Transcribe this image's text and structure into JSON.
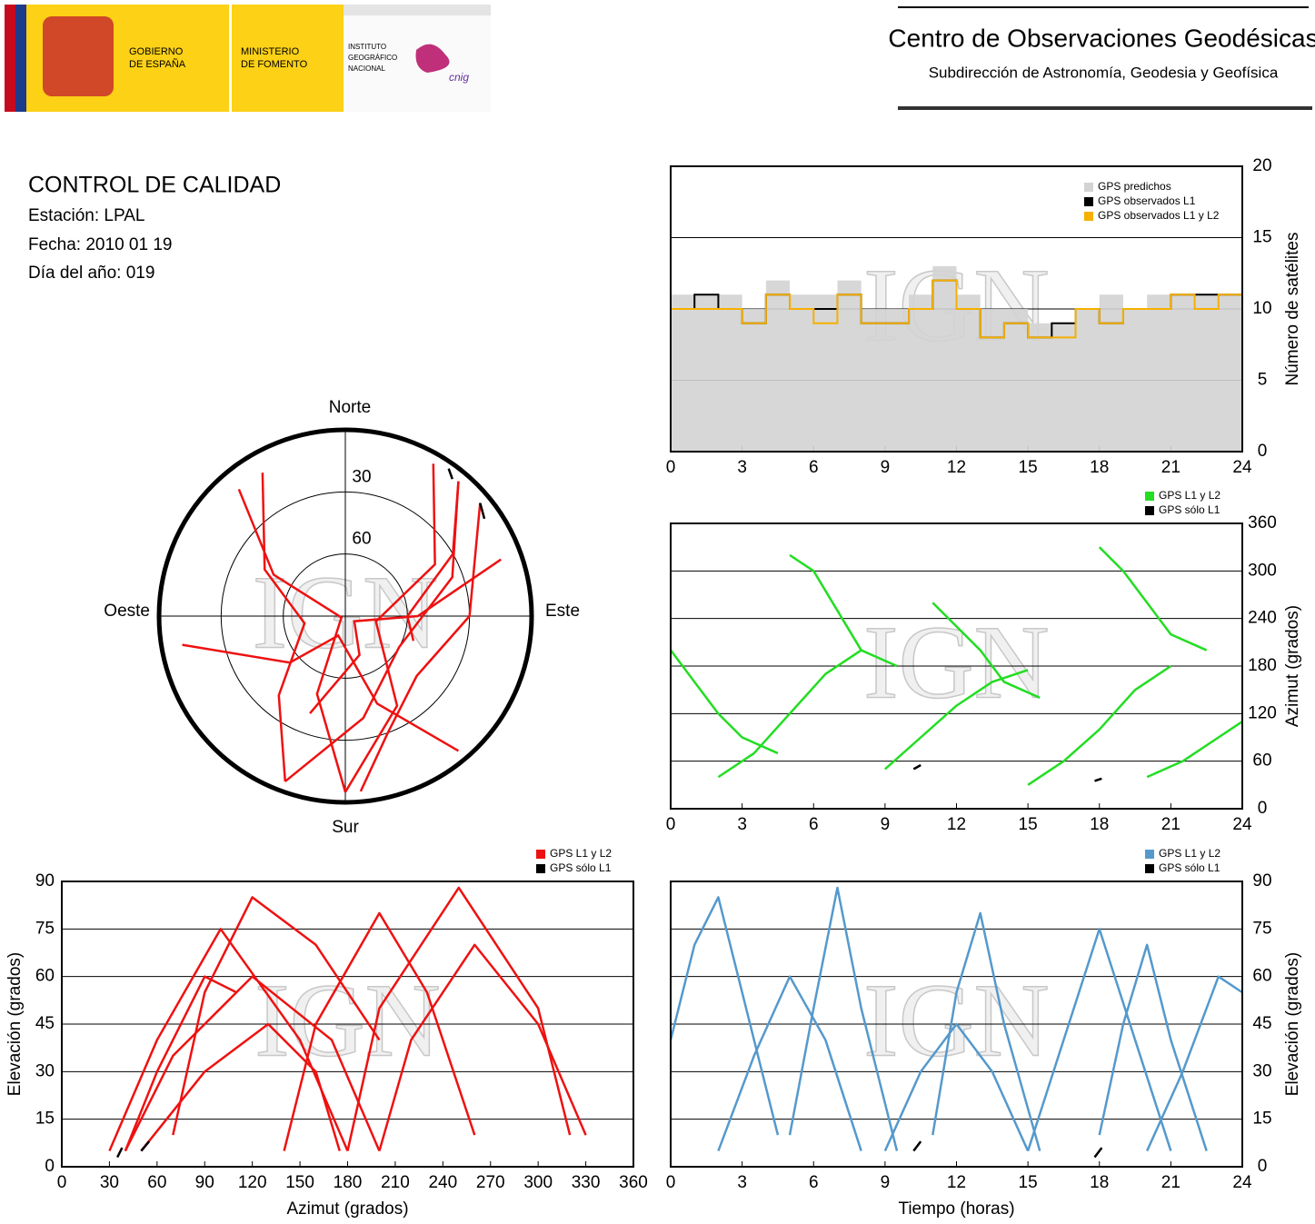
{
  "header": {
    "gobierno": [
      "GOBIERNO",
      "DE ESPAÑA"
    ],
    "ministerio": [
      "MINISTERIO",
      "DE FOMENTO"
    ],
    "instituto": [
      "INSTITUTO",
      "GEOGRÁFICO",
      "NACIONAL"
    ],
    "cnig": "cnig",
    "title": "Centro de Observaciones Geodésicas",
    "subtitle": "Subdirección de Astronomía, Geodesia y Geofísica"
  },
  "info": {
    "title": "CONTROL DE CALIDAD",
    "station": "Estación: LPAL",
    "date": "Fecha: 2010 01 19",
    "doy": "Día del año: 019"
  },
  "chart_data": [
    {
      "type": "step",
      "watermark": "IGN",
      "y_label": "Número de satélites",
      "xlim": [
        0,
        24
      ],
      "xticks": [
        0,
        3,
        6,
        9,
        12,
        15,
        18,
        21,
        24
      ],
      "ylim": [
        0,
        20
      ],
      "yticks": [
        0,
        5,
        10,
        15,
        20
      ],
      "grid": true,
      "yaxis_side": "right",
      "legend": "upper right",
      "x": [
        0,
        1,
        2,
        3,
        4,
        5,
        6,
        7,
        8,
        9,
        10,
        11,
        12,
        13,
        14,
        15,
        16,
        17,
        18,
        19,
        20,
        21,
        22,
        23,
        24
      ],
      "series": [
        {
          "name": "GPS predichos",
          "color": "#d3d3d3",
          "area": true,
          "values": [
            11,
            11,
            11,
            10,
            12,
            11,
            11,
            12,
            10,
            10,
            11,
            13,
            11,
            10,
            10,
            9,
            9,
            10,
            11,
            10,
            11,
            11,
            11,
            11,
            14
          ]
        },
        {
          "name": "GPS observados L1",
          "color": "#000000",
          "values": [
            10,
            11,
            10,
            9,
            11,
            10,
            10,
            11,
            9,
            9,
            10,
            12,
            10,
            8,
            9,
            8,
            9,
            10,
            9,
            10,
            10,
            11,
            11,
            11,
            13
          ]
        },
        {
          "name": "GPS observados L1 y L2",
          "color": "#f5b000",
          "values": [
            10,
            10,
            10,
            9,
            11,
            10,
            9,
            11,
            9,
            9,
            10,
            12,
            10,
            8,
            9,
            8,
            8,
            10,
            9,
            10,
            10,
            11,
            10,
            11,
            13
          ]
        }
      ]
    },
    {
      "type": "tracks",
      "watermark": "IGN",
      "y_label": "Azimut (grados)",
      "xlim": [
        0,
        24
      ],
      "xticks": [
        0,
        3,
        6,
        9,
        12,
        15,
        18,
        21,
        24
      ],
      "ylim": [
        0,
        360
      ],
      "yticks": [
        0,
        60,
        120,
        180,
        240,
        300,
        360
      ],
      "grid": true,
      "yaxis_side": "right",
      "legend": "above right",
      "series": [
        {
          "name": "GPS L1 y L2",
          "color": "#22dd22",
          "tracks": [
            {
              "x": [
                0,
                1,
                2,
                3,
                4.5
              ],
              "values": [
                200,
                160,
                120,
                90,
                70
              ]
            },
            {
              "x": [
                2,
                3.5,
                5,
                6.5,
                8
              ],
              "values": [
                40,
                70,
                120,
                170,
                200
              ]
            },
            {
              "x": [
                5,
                6,
                7,
                8,
                9.5
              ],
              "values": [
                320,
                300,
                250,
                200,
                180
              ]
            },
            {
              "x": [
                9,
                10.5,
                12,
                13.5,
                15
              ],
              "values": [
                50,
                90,
                130,
                160,
                175
              ]
            },
            {
              "x": [
                11,
                12,
                13,
                14,
                15.5
              ],
              "values": [
                260,
                230,
                200,
                160,
                140
              ]
            },
            {
              "x": [
                15,
                16.5,
                18,
                19.5,
                21
              ],
              "values": [
                30,
                60,
                100,
                150,
                180
              ]
            },
            {
              "x": [
                18,
                19,
                20,
                21,
                22.5
              ],
              "values": [
                330,
                300,
                260,
                220,
                200
              ]
            },
            {
              "x": [
                20,
                21.5,
                23,
                24
              ],
              "values": [
                40,
                60,
                90,
                110
              ]
            }
          ]
        },
        {
          "name": "GPS sólo L1",
          "color": "#000000",
          "tracks": [
            {
              "x": [
                10.2,
                10.5
              ],
              "values": [
                50,
                55
              ]
            },
            {
              "x": [
                17.8,
                18.1
              ],
              "values": [
                35,
                38
              ]
            }
          ]
        }
      ]
    },
    {
      "type": "polar",
      "watermark": "IGN",
      "north": "Norte",
      "south": "Sur",
      "east": "Este",
      "west": "Oeste",
      "rlim": [
        0,
        90
      ],
      "rticks": [
        30,
        60
      ],
      "series": [
        {
          "name": "GPS L1 y L2",
          "color": "#ee1111",
          "tracks": [
            {
              "azimuth": [
                200,
                160,
                120,
                90,
                70
              ],
              "elevation": [
                40,
                70,
                85,
                55,
                10
              ]
            },
            {
              "azimuth": [
                40,
                70,
                120,
                170,
                200
              ],
              "elevation": [
                5,
                35,
                60,
                40,
                5
              ]
            },
            {
              "azimuth": [
                320,
                300,
                250,
                200,
                180
              ],
              "elevation": [
                10,
                50,
                88,
                50,
                5
              ]
            },
            {
              "azimuth": [
                50,
                90,
                130,
                160,
                175
              ],
              "elevation": [
                5,
                30,
                45,
                30,
                5
              ]
            },
            {
              "azimuth": [
                260,
                230,
                200,
                160,
                140
              ],
              "elevation": [
                10,
                55,
                80,
                45,
                5
              ]
            },
            {
              "azimuth": [
                30,
                60,
                100,
                150,
                180
              ],
              "elevation": [
                5,
                40,
                75,
                40,
                5
              ]
            },
            {
              "azimuth": [
                330,
                300,
                260,
                220,
                200
              ],
              "elevation": [
                10,
                45,
                70,
                40,
                5
              ]
            },
            {
              "azimuth": [
                40,
                60,
                90,
                110
              ],
              "elevation": [
                5,
                30,
                60,
                55
              ]
            }
          ]
        },
        {
          "name": "GPS sólo L1",
          "color": "#000000",
          "tracks": [
            {
              "azimuth": [
                50,
                55
              ],
              "elevation": [
                5,
                8
              ]
            },
            {
              "azimuth": [
                35,
                38
              ],
              "elevation": [
                3,
                6
              ]
            }
          ]
        }
      ]
    },
    {
      "type": "tracks",
      "watermark": "IGN",
      "x_label": "Azimut (grados)",
      "y_label": "Elevación (grados)",
      "xlim": [
        0,
        360
      ],
      "xticks": [
        0,
        30,
        60,
        90,
        120,
        150,
        180,
        210,
        240,
        270,
        300,
        330,
        360
      ],
      "ylim": [
        0,
        90
      ],
      "yticks": [
        0,
        15,
        30,
        45,
        60,
        75,
        90
      ],
      "grid": true,
      "yaxis_side": "left",
      "legend": "above right",
      "series": [
        {
          "name": "GPS L1 y L2",
          "color": "#ee1111",
          "tracks": [
            {
              "x": [
                200,
                160,
                120,
                90,
                70
              ],
              "values": [
                40,
                70,
                85,
                55,
                10
              ]
            },
            {
              "x": [
                40,
                70,
                120,
                170,
                200
              ],
              "values": [
                5,
                35,
                60,
                40,
                5
              ]
            },
            {
              "x": [
                320,
                300,
                250,
                200,
                180
              ],
              "values": [
                10,
                50,
                88,
                50,
                5
              ]
            },
            {
              "x": [
                50,
                90,
                130,
                160,
                175
              ],
              "values": [
                5,
                30,
                45,
                30,
                5
              ]
            },
            {
              "x": [
                260,
                230,
                200,
                160,
                140
              ],
              "values": [
                10,
                55,
                80,
                45,
                5
              ]
            },
            {
              "x": [
                30,
                60,
                100,
                150,
                180
              ],
              "values": [
                5,
                40,
                75,
                40,
                5
              ]
            },
            {
              "x": [
                330,
                300,
                260,
                220,
                200
              ],
              "values": [
                10,
                45,
                70,
                40,
                5
              ]
            },
            {
              "x": [
                40,
                60,
                90,
                110
              ],
              "values": [
                5,
                30,
                60,
                55
              ]
            }
          ]
        },
        {
          "name": "GPS sólo L1",
          "color": "#000000",
          "tracks": [
            {
              "x": [
                50,
                55
              ],
              "values": [
                5,
                8
              ]
            },
            {
              "x": [
                35,
                38
              ],
              "values": [
                3,
                6
              ]
            }
          ]
        }
      ]
    },
    {
      "type": "tracks",
      "watermark": "IGN",
      "x_label": "Tiempo (horas)",
      "y_label": "Elevación (grados)",
      "xlim": [
        0,
        24
      ],
      "xticks": [
        0,
        3,
        6,
        9,
        12,
        15,
        18,
        21,
        24
      ],
      "ylim": [
        0,
        90
      ],
      "yticks": [
        0,
        15,
        30,
        45,
        60,
        75,
        90
      ],
      "grid": true,
      "yaxis_side": "right",
      "legend": "above right",
      "series": [
        {
          "name": "GPS L1 y L2",
          "color": "#5599cc",
          "tracks": [
            {
              "x": [
                0,
                1,
                2,
                3,
                4.5
              ],
              "values": [
                40,
                70,
                85,
                55,
                10
              ]
            },
            {
              "x": [
                2,
                3.5,
                5,
                6.5,
                8
              ],
              "values": [
                5,
                35,
                60,
                40,
                5
              ]
            },
            {
              "x": [
                5,
                6,
                7,
                8,
                9.5
              ],
              "values": [
                10,
                50,
                88,
                50,
                5
              ]
            },
            {
              "x": [
                9,
                10.5,
                12,
                13.5,
                15
              ],
              "values": [
                5,
                30,
                45,
                30,
                5
              ]
            },
            {
              "x": [
                11,
                12,
                13,
                14,
                15.5
              ],
              "values": [
                10,
                55,
                80,
                45,
                5
              ]
            },
            {
              "x": [
                15,
                16.5,
                18,
                19.5,
                21
              ],
              "values": [
                5,
                40,
                75,
                40,
                5
              ]
            },
            {
              "x": [
                18,
                19,
                20,
                21,
                22.5
              ],
              "values": [
                10,
                45,
                70,
                40,
                5
              ]
            },
            {
              "x": [
                20,
                21.5,
                23,
                24
              ],
              "values": [
                5,
                30,
                60,
                55
              ]
            }
          ]
        },
        {
          "name": "GPS sólo L1",
          "color": "#000000",
          "tracks": [
            {
              "x": [
                10.2,
                10.5
              ],
              "values": [
                5,
                8
              ]
            },
            {
              "x": [
                17.8,
                18.1
              ],
              "values": [
                3,
                6
              ]
            }
          ]
        }
      ]
    }
  ]
}
